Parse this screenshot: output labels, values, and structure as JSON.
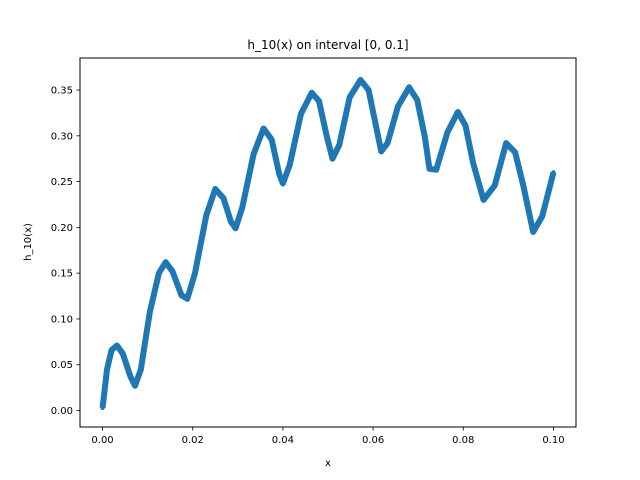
{
  "chart_data": {
    "type": "line",
    "title": "h_10(x) on interval [0, 0.1]",
    "xlabel": "x",
    "ylabel": "h_10(x)",
    "xlim": [
      -0.005,
      0.105
    ],
    "ylim": [
      -0.018,
      0.385
    ],
    "xticks": [
      0.0,
      0.02,
      0.04,
      0.06,
      0.08,
      0.1
    ],
    "xtick_labels": [
      "0.00",
      "0.02",
      "0.04",
      "0.06",
      "0.08",
      "0.10"
    ],
    "yticks": [
      0.0,
      0.05,
      0.1,
      0.15,
      0.2,
      0.25,
      0.3,
      0.35
    ],
    "ytick_labels": [
      "0.00",
      "0.05",
      "0.10",
      "0.15",
      "0.20",
      "0.25",
      "0.30",
      "0.35"
    ],
    "grid": false,
    "legend": "none",
    "series": [
      {
        "color": "#1f77b4",
        "x": [
          0.0,
          0.001,
          0.002,
          0.0032,
          0.0045,
          0.0062,
          0.0072,
          0.0085,
          0.0105,
          0.0125,
          0.014,
          0.0155,
          0.0175,
          0.0188,
          0.0205,
          0.023,
          0.025,
          0.0268,
          0.0285,
          0.0295,
          0.031,
          0.0335,
          0.0357,
          0.0375,
          0.0392,
          0.04,
          0.0415,
          0.044,
          0.0464,
          0.048,
          0.0498,
          0.051,
          0.0525,
          0.0548,
          0.0572,
          0.059,
          0.0608,
          0.0618,
          0.0632,
          0.0655,
          0.068,
          0.0698,
          0.0715,
          0.0725,
          0.074,
          0.0765,
          0.0788,
          0.0805,
          0.0822,
          0.0845,
          0.087,
          0.0895,
          0.0915,
          0.0933,
          0.0955,
          0.0975,
          0.1
        ],
        "y": [
          0.003,
          0.045,
          0.066,
          0.071,
          0.062,
          0.037,
          0.027,
          0.045,
          0.108,
          0.15,
          0.162,
          0.152,
          0.126,
          0.122,
          0.15,
          0.213,
          0.242,
          0.232,
          0.206,
          0.199,
          0.222,
          0.28,
          0.308,
          0.296,
          0.258,
          0.248,
          0.268,
          0.324,
          0.347,
          0.338,
          0.298,
          0.275,
          0.29,
          0.342,
          0.361,
          0.35,
          0.307,
          0.283,
          0.292,
          0.332,
          0.353,
          0.339,
          0.298,
          0.264,
          0.263,
          0.304,
          0.326,
          0.311,
          0.27,
          0.23,
          0.246,
          0.292,
          0.282,
          0.246,
          0.195,
          0.212,
          0.26
        ]
      }
    ]
  }
}
